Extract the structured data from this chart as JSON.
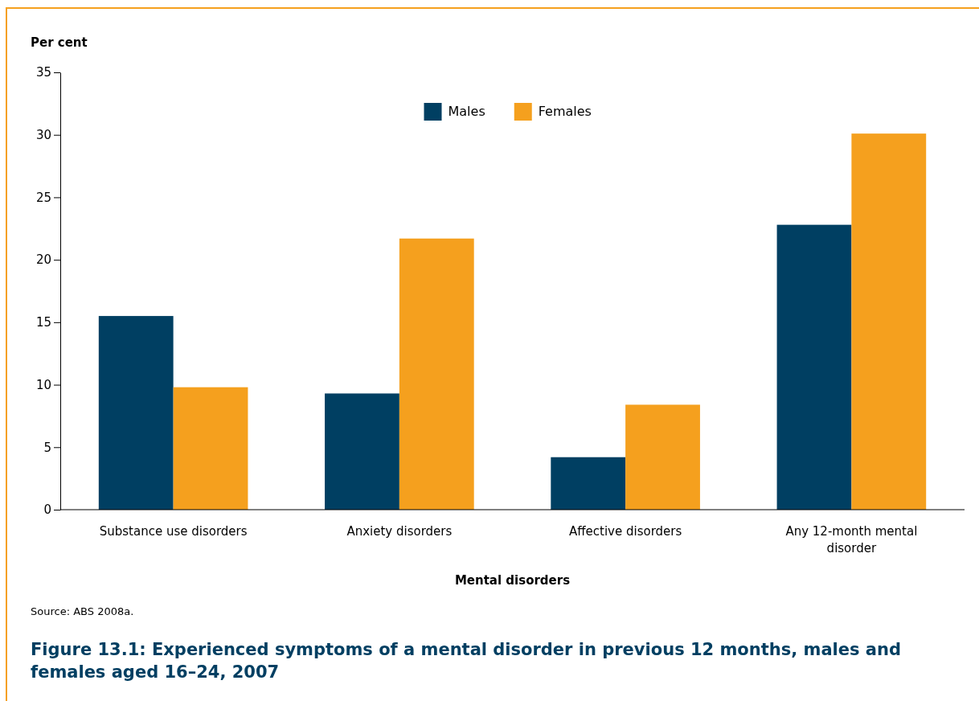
{
  "chart_data": {
    "type": "bar",
    "title": "Figure 13.1: Experienced symptoms of a mental disorder in previous 12 months, males and females aged 16–24, 2007",
    "xlabel": "Mental disorders",
    "ylabel": "Per cent",
    "categories": [
      "Substance use disorders",
      "Anxiety disorders",
      "Affective disorders",
      "Any 12-month mental disorder"
    ],
    "series": [
      {
        "name": "Males",
        "color": "#003f62",
        "values": [
          15.5,
          9.3,
          4.2,
          22.8
        ]
      },
      {
        "name": "Females",
        "color": "#f5a01e",
        "values": [
          9.8,
          21.7,
          8.4,
          30.1
        ]
      }
    ],
    "ylim": [
      0,
      35
    ],
    "yticks": [
      0,
      5,
      10,
      15,
      20,
      25,
      30,
      35
    ],
    "grid": false,
    "legend": "top",
    "annotations": [
      "Source: ABS 2008a."
    ]
  }
}
